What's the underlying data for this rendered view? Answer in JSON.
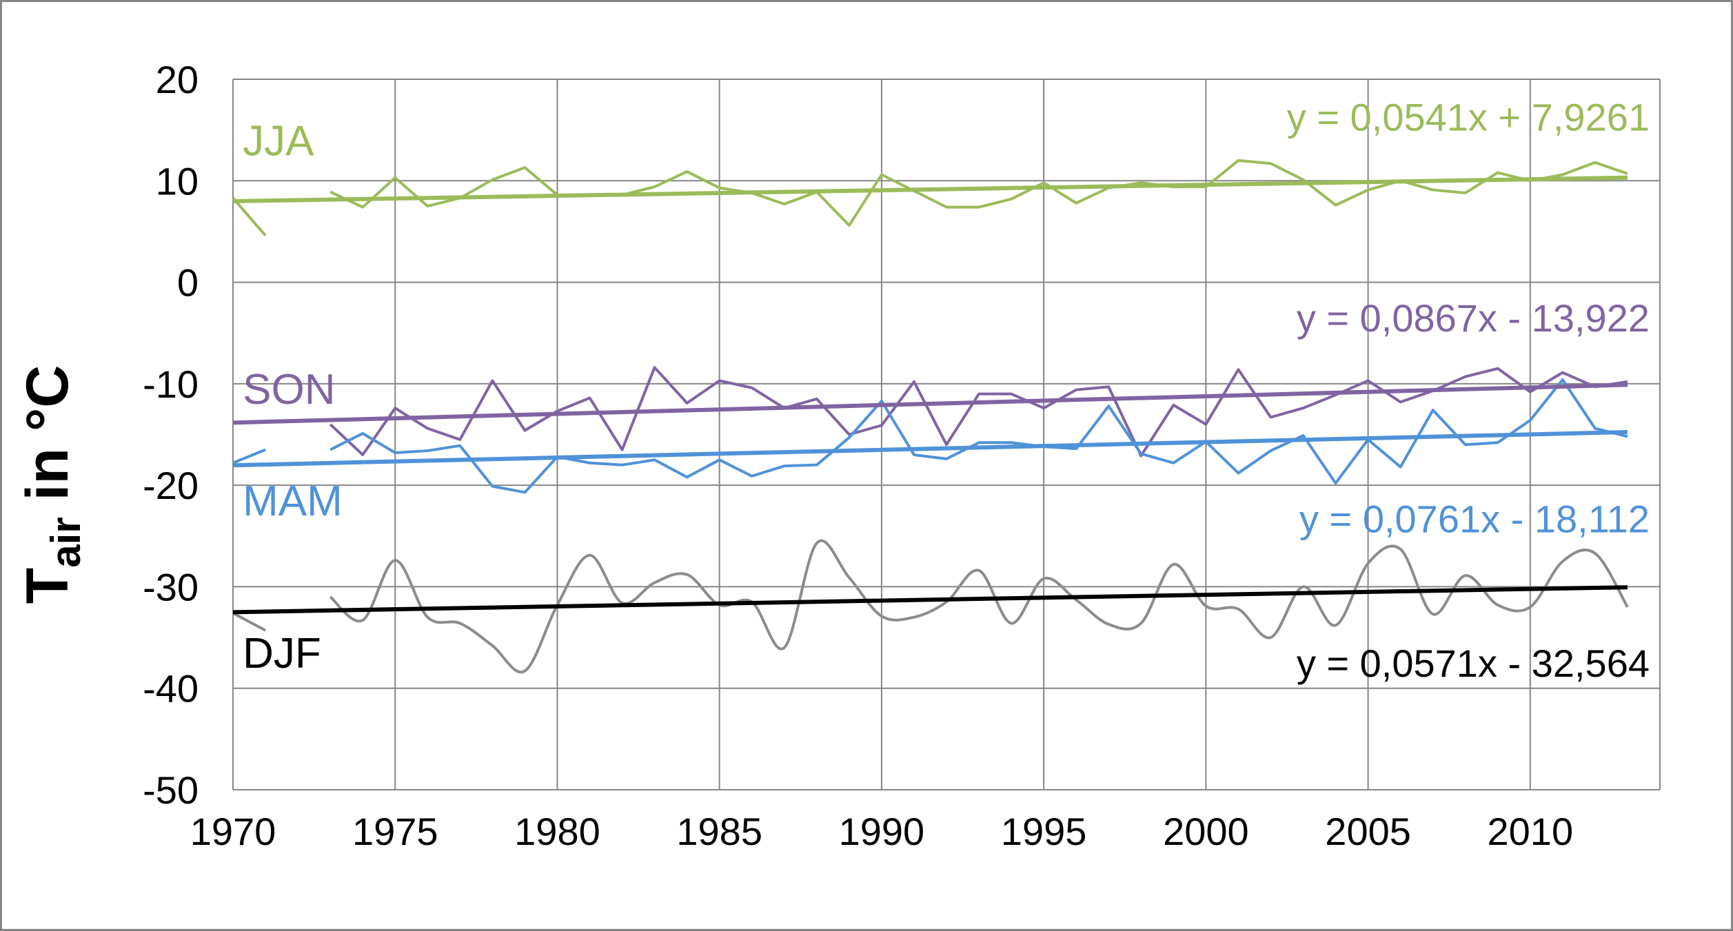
{
  "chart_data": {
    "type": "line",
    "ylabel_main": "T",
    "ylabel_sub": "air",
    "ylabel_rest": " in °C",
    "xlim": [
      1970,
      2014
    ],
    "ylim": [
      -50,
      20
    ],
    "grid": true,
    "xticks": [
      1970,
      1975,
      1980,
      1985,
      1990,
      1995,
      2000,
      2005,
      2010
    ],
    "yticks": [
      20,
      10,
      0,
      -10,
      -20,
      -30,
      -40,
      -50
    ],
    "series": [
      {
        "name": "JJA",
        "color": "#9BBB59",
        "trend_color": "#9BBB59",
        "equation": "y = 0,0541x + 7,9261",
        "trend": {
          "slope": 0.0541,
          "intercept": 7.9261
        },
        "x": [
          1970,
          1971,
          1973,
          1974,
          1975,
          1976,
          1977,
          1978,
          1979,
          1980,
          1981,
          1982,
          1983,
          1984,
          1985,
          1986,
          1987,
          1988,
          1989,
          1990,
          1991,
          1992,
          1993,
          1994,
          1995,
          1996,
          1997,
          1998,
          1999,
          2000,
          2001,
          2002,
          2003,
          2004,
          2005,
          2006,
          2007,
          2008,
          2009,
          2010,
          2011,
          2012,
          2013
        ],
        "values": [
          8.3,
          4.6,
          8.9,
          7.4,
          10.3,
          7.5,
          8.3,
          10.1,
          11.3,
          8.6,
          8.6,
          8.6,
          9.4,
          10.9,
          9.3,
          8.8,
          7.7,
          8.9,
          5.6,
          10.6,
          9.0,
          7.4,
          7.4,
          8.2,
          9.8,
          7.8,
          9.3,
          9.8,
          9.4,
          9.4,
          12.0,
          11.7,
          10.1,
          7.6,
          9.1,
          10.0,
          9.1,
          8.8,
          10.8,
          10.0,
          10.6,
          11.8,
          10.7
        ],
        "gap_after": [
          1971
        ]
      },
      {
        "name": "SON",
        "color": "#8064A2",
        "trend_color": "#8064A2",
        "equation": "y = 0,0867x - 13,922",
        "trend": {
          "slope": 0.0867,
          "intercept": -13.922
        },
        "x": [
          1973,
          1974,
          1975,
          1976,
          1977,
          1978,
          1979,
          1980,
          1981,
          1982,
          1983,
          1984,
          1985,
          1986,
          1987,
          1988,
          1989,
          1990,
          1991,
          1992,
          1993,
          1994,
          1995,
          1996,
          1997,
          1998,
          1999,
          2000,
          2001,
          2002,
          2003,
          2004,
          2005,
          2006,
          2007,
          2008,
          2009,
          2010,
          2011,
          2012,
          2013
        ],
        "values": [
          -14.0,
          -17.0,
          -12.4,
          -14.4,
          -15.5,
          -9.7,
          -14.6,
          -12.7,
          -11.4,
          -16.5,
          -8.4,
          -11.9,
          -9.7,
          -10.4,
          -12.4,
          -11.5,
          -15.0,
          -14.1,
          -9.8,
          -16.0,
          -11.0,
          -11.0,
          -12.4,
          -10.6,
          -10.3,
          -17.1,
          -12.1,
          -14.0,
          -8.6,
          -13.3,
          -12.4,
          -11.1,
          -9.7,
          -11.8,
          -10.7,
          -9.3,
          -8.5,
          -10.8,
          -8.9,
          -10.3,
          -9.8
        ],
        "gap_after": []
      },
      {
        "name": "MAM",
        "color": "#4F92D8",
        "trend_color": "#4F92D8",
        "equation": "y = 0,0761x - 18,112",
        "trend": {
          "slope": 0.0761,
          "intercept": -18.112
        },
        "x": [
          1970,
          1971,
          1973,
          1974,
          1975,
          1976,
          1977,
          1978,
          1979,
          1980,
          1981,
          1982,
          1983,
          1984,
          1985,
          1986,
          1987,
          1988,
          1989,
          1990,
          1991,
          1992,
          1993,
          1994,
          1995,
          1996,
          1997,
          1998,
          1999,
          2000,
          2001,
          2002,
          2003,
          2004,
          2005,
          2006,
          2007,
          2008,
          2009,
          2010,
          2011,
          2012,
          2013
        ],
        "values": [
          -17.8,
          -16.5,
          -16.5,
          -14.9,
          -16.8,
          -16.6,
          -16.1,
          -20.1,
          -20.7,
          -17.2,
          -17.8,
          -18.0,
          -17.5,
          -19.2,
          -17.5,
          -19.1,
          -18.1,
          -18.0,
          -15.3,
          -11.7,
          -17.0,
          -17.4,
          -15.8,
          -15.8,
          -16.2,
          -16.4,
          -12.2,
          -16.9,
          -17.8,
          -15.7,
          -18.8,
          -16.6,
          -15.1,
          -19.8,
          -15.5,
          -18.2,
          -12.6,
          -16.0,
          -15.8,
          -13.6,
          -9.6,
          -14.4,
          -15.2
        ],
        "gap_after": [
          1971
        ]
      },
      {
        "name": "DJF",
        "color": "#8C8C8C",
        "trend_color": "#000000",
        "equation": "y = 0,0571x - 32,564",
        "trend": {
          "slope": 0.0571,
          "intercept": -32.564
        },
        "smooth": true,
        "x": [
          1970,
          1971,
          1973,
          1974,
          1975,
          1976,
          1977,
          1978,
          1979,
          1980,
          1981,
          1982,
          1983,
          1984,
          1985,
          1986,
          1987,
          1988,
          1989,
          1990,
          1991,
          1992,
          1993,
          1994,
          1995,
          1996,
          1997,
          1998,
          1999,
          2000,
          2001,
          2002,
          2003,
          2004,
          2005,
          2006,
          2007,
          2008,
          2009,
          2010,
          2011,
          2012,
          2013
        ],
        "values": [
          -32.6,
          -34.3,
          -31.0,
          -33.3,
          -27.4,
          -33.0,
          -33.6,
          -35.8,
          -38.3,
          -31.8,
          -26.9,
          -31.6,
          -29.6,
          -28.8,
          -31.8,
          -31.5,
          -36.0,
          -25.7,
          -29.1,
          -32.9,
          -33.0,
          -31.5,
          -28.4,
          -33.6,
          -29.2,
          -31.3,
          -33.7,
          -33.6,
          -27.8,
          -31.9,
          -32.2,
          -35.0,
          -30.0,
          -33.8,
          -27.7,
          -26.3,
          -32.7,
          -28.9,
          -31.8,
          -32.0,
          -27.5,
          -26.7,
          -32.0
        ],
        "gap_after": [
          1971
        ]
      }
    ]
  }
}
